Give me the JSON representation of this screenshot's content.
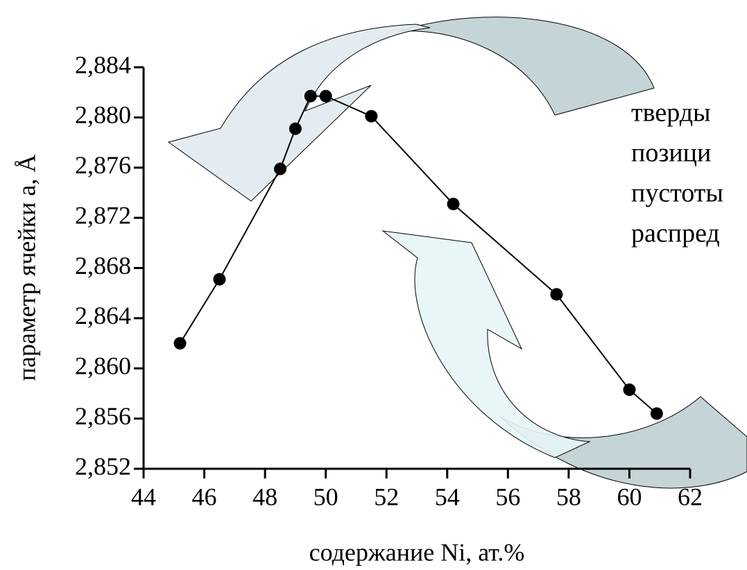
{
  "chart_data": {
    "type": "line",
    "marker": "circle",
    "color": "#000000",
    "xlabel": "содержание Ni, ат.%",
    "ylabel": "параметр ячейки a, Å",
    "x": [
      45.2,
      46.5,
      48.5,
      49.0,
      49.5,
      50.0,
      51.5,
      54.2,
      57.6,
      60.0,
      60.9
    ],
    "values": [
      2.862,
      2.8671,
      2.8759,
      2.8791,
      2.8817,
      2.8817,
      2.8801,
      2.8731,
      2.8659,
      2.8583,
      2.8564
    ],
    "xlim": [
      44,
      62
    ],
    "xticks": [
      44,
      46,
      48,
      50,
      52,
      54,
      56,
      58,
      60,
      62
    ],
    "ylim": [
      2.852,
      2.884
    ],
    "yticks": [
      {
        "value": 2.852,
        "label": "2,852"
      },
      {
        "value": 2.856,
        "label": "2,856"
      },
      {
        "value": 2.86,
        "label": "2,860"
      },
      {
        "value": 2.864,
        "label": "2,864"
      },
      {
        "value": 2.868,
        "label": "2,868"
      },
      {
        "value": 2.872,
        "label": "2,872"
      },
      {
        "value": 2.876,
        "label": "2,876"
      },
      {
        "value": 2.88,
        "label": "2,880"
      },
      {
        "value": 2.884,
        "label": "2,884"
      }
    ],
    "annotations": [
      "тверды",
      "позици",
      "пустоты",
      "распред"
    ]
  }
}
